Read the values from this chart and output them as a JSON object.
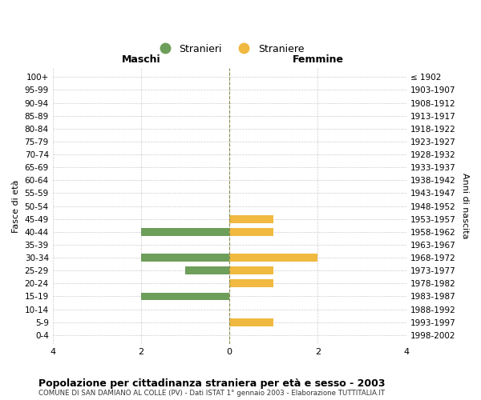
{
  "age_groups": [
    "0-4",
    "5-9",
    "10-14",
    "15-19",
    "20-24",
    "25-29",
    "30-34",
    "35-39",
    "40-44",
    "45-49",
    "50-54",
    "55-59",
    "60-64",
    "65-69",
    "70-74",
    "75-79",
    "80-84",
    "85-89",
    "90-94",
    "95-99",
    "100+"
  ],
  "birth_years": [
    "1998-2002",
    "1993-1997",
    "1988-1992",
    "1983-1987",
    "1978-1982",
    "1973-1977",
    "1968-1972",
    "1963-1967",
    "1958-1962",
    "1953-1957",
    "1948-1952",
    "1943-1947",
    "1938-1942",
    "1933-1937",
    "1928-1932",
    "1923-1927",
    "1918-1922",
    "1913-1917",
    "1908-1912",
    "1903-1907",
    "≤ 1902"
  ],
  "maschi": [
    0,
    0,
    0,
    2,
    0,
    1,
    2,
    0,
    2,
    0,
    0,
    0,
    0,
    0,
    0,
    0,
    0,
    0,
    0,
    0,
    0
  ],
  "femmine": [
    0,
    1,
    0,
    0,
    1,
    1,
    2,
    0,
    1,
    1,
    0,
    0,
    0,
    0,
    0,
    0,
    0,
    0,
    0,
    0,
    0
  ],
  "maschi_color": "#6d9e5a",
  "femmine_color": "#f0b940",
  "title": "Popolazione per cittadinanza straniera per età e sesso - 2003",
  "subtitle": "COMUNE DI SAN DAMIANO AL COLLE (PV) - Dati ISTAT 1° gennaio 2003 - Elaborazione TUTTITALIA.IT",
  "xlabel_left": "Maschi",
  "xlabel_right": "Femmine",
  "ylabel_left": "Fasce di età",
  "ylabel_right": "Anni di nascita",
  "legend_maschi": "Stranieri",
  "legend_femmine": "Straniere",
  "xlim": 4,
  "background_color": "#ffffff",
  "grid_color": "#cccccc",
  "center_line_color": "#8b8b50"
}
